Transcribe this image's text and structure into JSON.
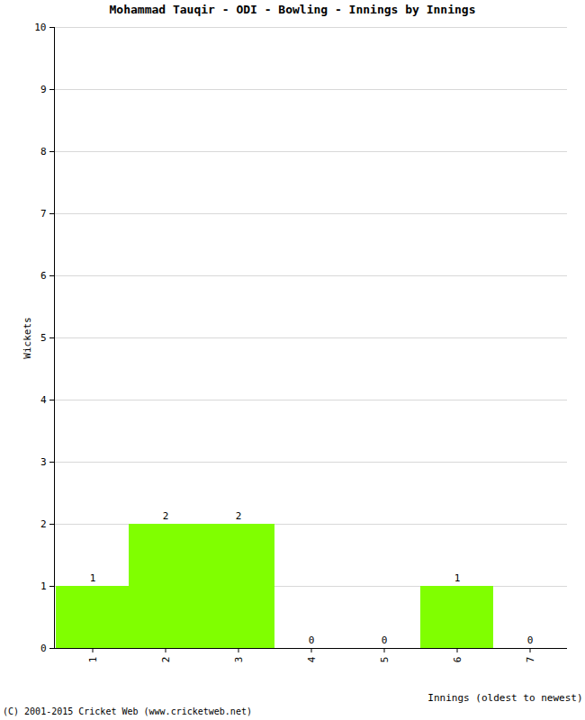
{
  "chart_data": {
    "type": "bar",
    "title": "Mohammad Tauqir - ODI - Bowling - Innings by Innings",
    "x_label": "Innings (oldest to newest)",
    "y_label": "Wickets",
    "categories": [
      1,
      2,
      3,
      4,
      5,
      6,
      7
    ],
    "values": [
      1,
      2,
      2,
      0,
      0,
      1,
      0
    ],
    "color": "#80ff00",
    "ylim": [
      0,
      10
    ],
    "yticks": [
      0,
      1,
      2,
      3,
      4,
      5,
      6,
      7,
      8,
      9,
      10
    ],
    "grid": true,
    "data_labels": true,
    "annotations": [
      "(C) 2001-2015 Cricket Web (www.cricketweb.net)"
    ]
  }
}
